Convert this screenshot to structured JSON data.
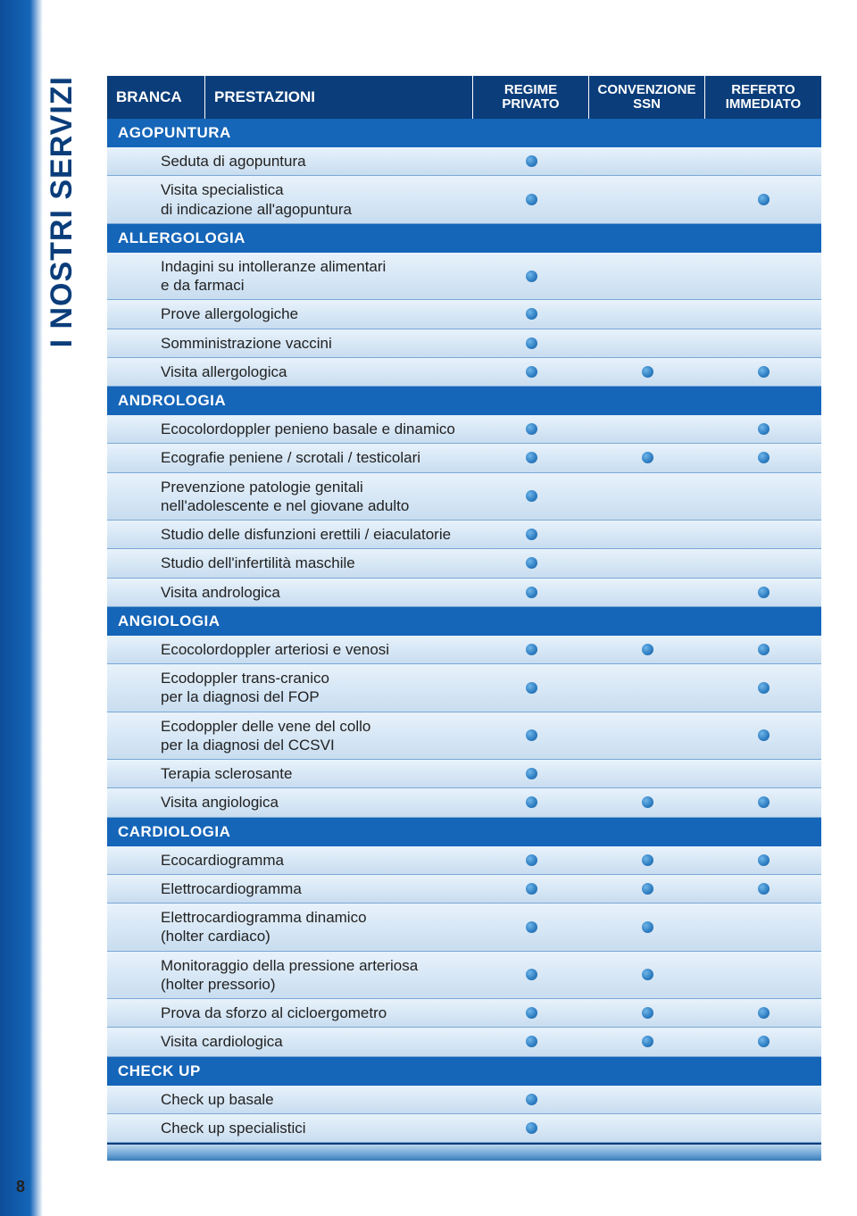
{
  "page": {
    "vertical_title": "I NOSTRI SERVIZI",
    "page_number": "8"
  },
  "header": {
    "branca": "BRANCA",
    "prestazioni": "PRESTAZIONI",
    "regime_l1": "REGIME",
    "regime_l2": "PRIVATO",
    "conv_l1": "CONVENZIONE",
    "conv_l2": "SSN",
    "ref_l1": "REFERTO",
    "ref_l2": "IMMEDIATO"
  },
  "sections": [
    {
      "title": "AGOPUNTURA",
      "rows": [
        {
          "label": "Seduta di agopuntura",
          "dots": [
            true,
            false,
            false
          ]
        },
        {
          "label": "Visita specialistica\ndi indicazione all'agopuntura",
          "dots": [
            true,
            false,
            true
          ]
        }
      ]
    },
    {
      "title": "ALLERGOLOGIA",
      "rows": [
        {
          "label": "Indagini su intolleranze alimentari\ne da farmaci",
          "dots": [
            true,
            false,
            false
          ]
        },
        {
          "label": "Prove allergologiche",
          "dots": [
            true,
            false,
            false
          ]
        },
        {
          "label": "Somministrazione vaccini",
          "dots": [
            true,
            false,
            false
          ]
        },
        {
          "label": "Visita allergologica",
          "dots": [
            true,
            true,
            true
          ]
        }
      ]
    },
    {
      "title": "ANDROLOGIA",
      "rows": [
        {
          "label": "Ecocolordoppler penieno basale e dinamico",
          "dots": [
            true,
            false,
            true
          ]
        },
        {
          "label": "Ecografie peniene / scrotali / testicolari",
          "dots": [
            true,
            true,
            true
          ]
        },
        {
          "label": "Prevenzione patologie genitali\nnell'adolescente e nel giovane adulto",
          "dots": [
            true,
            false,
            false
          ]
        },
        {
          "label": "Studio delle disfunzioni erettili / eiaculatorie",
          "dots": [
            true,
            false,
            false
          ]
        },
        {
          "label": "Studio dell'infertilità maschile",
          "dots": [
            true,
            false,
            false
          ]
        },
        {
          "label": "Visita andrologica",
          "dots": [
            true,
            false,
            true
          ]
        }
      ]
    },
    {
      "title": "ANGIOLOGIA",
      "rows": [
        {
          "label": "Ecocolordoppler arteriosi e venosi",
          "dots": [
            true,
            true,
            true
          ]
        },
        {
          "label": "Ecodoppler trans-cranico\nper la diagnosi del FOP",
          "dots": [
            true,
            false,
            true
          ]
        },
        {
          "label": "Ecodoppler delle vene del collo\nper la diagnosi del CCSVI",
          "dots": [
            true,
            false,
            true
          ]
        },
        {
          "label": "Terapia sclerosante",
          "dots": [
            true,
            false,
            false
          ]
        },
        {
          "label": "Visita angiologica",
          "dots": [
            true,
            true,
            true
          ]
        }
      ]
    },
    {
      "title": "CARDIOLOGIA",
      "rows": [
        {
          "label": "Ecocardiogramma",
          "dots": [
            true,
            true,
            true
          ]
        },
        {
          "label": "Elettrocardiogramma",
          "dots": [
            true,
            true,
            true
          ]
        },
        {
          "label": "Elettrocardiogramma dinamico\n(holter cardiaco)",
          "dots": [
            true,
            true,
            false
          ]
        },
        {
          "label": "Monitoraggio della pressione arteriosa\n(holter pressorio)",
          "dots": [
            true,
            true,
            false
          ]
        },
        {
          "label": "Prova da sforzo al cicloergometro",
          "dots": [
            true,
            true,
            true
          ]
        },
        {
          "label": "Visita cardiologica",
          "dots": [
            true,
            true,
            true
          ]
        }
      ]
    },
    {
      "title": "CHECK UP",
      "rows": [
        {
          "label": "Check up basale",
          "dots": [
            true,
            false,
            false
          ]
        },
        {
          "label": "Check up specialistici",
          "dots": [
            true,
            false,
            false
          ]
        }
      ]
    }
  ],
  "colors": {
    "header_bg": "#0a3d7a",
    "section_bg": "#1565b8",
    "row_border": "#7aa8d4"
  }
}
